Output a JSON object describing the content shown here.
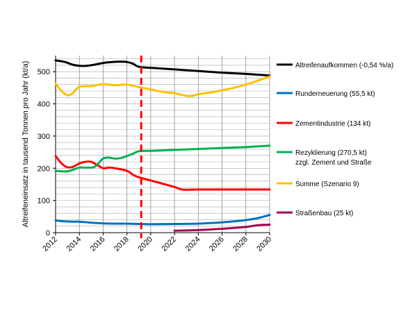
{
  "chart_data": {
    "type": "line",
    "title": "",
    "xlabel": "",
    "ylabel": "Altreifeneinsatz in tausend Tonnen pro Jahr (kt/a)",
    "xlim": [
      2012,
      2030
    ],
    "ylim": [
      0,
      550
    ],
    "x_ticks": [
      2012,
      2014,
      2016,
      2018,
      2020,
      2022,
      2024,
      2026,
      2028,
      2030
    ],
    "y_ticks": [
      0,
      100,
      200,
      300,
      400,
      500
    ],
    "grid": "horizontal minor (every 20) and vertical every 2 years",
    "legend_position": "right",
    "vertical_marker": {
      "x": 2019.2,
      "style": "dashed",
      "color": "#ff0000"
    },
    "series": [
      {
        "name": "Altreifenaufkommen (-0,54 %/a)",
        "color": "#000000",
        "points": [
          [
            2012,
            535
          ],
          [
            2012.8,
            530
          ],
          [
            2013.4,
            522
          ],
          [
            2014,
            518
          ],
          [
            2014.6,
            518
          ],
          [
            2015.3,
            522
          ],
          [
            2016,
            527
          ],
          [
            2016.8,
            530
          ],
          [
            2017.5,
            531
          ],
          [
            2018,
            530
          ],
          [
            2018.5,
            525
          ],
          [
            2019,
            515
          ],
          [
            2020,
            512
          ],
          [
            2022,
            507
          ],
          [
            2024,
            502
          ],
          [
            2026,
            497
          ],
          [
            2028,
            493
          ],
          [
            2030,
            488
          ]
        ]
      },
      {
        "name": "Runderneuerung (55,5 kt)",
        "color": "#0070c0",
        "points": [
          [
            2012,
            38
          ],
          [
            2012.8,
            35
          ],
          [
            2013.5,
            34
          ],
          [
            2014,
            34
          ],
          [
            2015,
            31
          ],
          [
            2016,
            29
          ],
          [
            2017,
            28
          ],
          [
            2018,
            28
          ],
          [
            2019,
            27
          ],
          [
            2020,
            26
          ],
          [
            2022,
            27
          ],
          [
            2024,
            28
          ],
          [
            2025,
            30
          ],
          [
            2026,
            32
          ],
          [
            2027,
            35
          ],
          [
            2028,
            39
          ],
          [
            2029,
            45
          ],
          [
            2030,
            55
          ]
        ]
      },
      {
        "name": "Zementindustrie (134 kt)",
        "color": "#ff0000",
        "points": [
          [
            2012,
            238
          ],
          [
            2012.5,
            215
          ],
          [
            2013,
            203
          ],
          [
            2013.5,
            205
          ],
          [
            2014,
            215
          ],
          [
            2014.5,
            220
          ],
          [
            2015,
            220
          ],
          [
            2015.5,
            210
          ],
          [
            2016,
            200
          ],
          [
            2016.5,
            202
          ],
          [
            2017,
            200
          ],
          [
            2018,
            192
          ],
          [
            2018.5,
            180
          ],
          [
            2019,
            172
          ],
          [
            2020,
            162
          ],
          [
            2021,
            152
          ],
          [
            2022,
            142
          ],
          [
            2022.5,
            135
          ],
          [
            2023,
            133
          ],
          [
            2024,
            134
          ],
          [
            2026,
            134
          ],
          [
            2028,
            134
          ],
          [
            2030,
            134
          ]
        ]
      },
      {
        "name": "Rezyklierung (270,5 kt)",
        "name_line2": "zzgl. Zement und Straße",
        "color": "#00b050",
        "points": [
          [
            2012,
            192
          ],
          [
            2012.7,
            190
          ],
          [
            2013.2,
            192
          ],
          [
            2014,
            202
          ],
          [
            2014.7,
            202
          ],
          [
            2015.3,
            205
          ],
          [
            2016,
            230
          ],
          [
            2016.5,
            233
          ],
          [
            2017,
            230
          ],
          [
            2017.5,
            232
          ],
          [
            2018,
            238
          ],
          [
            2018.5,
            245
          ],
          [
            2019,
            253
          ],
          [
            2020,
            254
          ],
          [
            2022,
            257
          ],
          [
            2024,
            260
          ],
          [
            2026,
            263
          ],
          [
            2028,
            266
          ],
          [
            2030,
            270
          ]
        ]
      },
      {
        "name": "Summe (Szenario 9)",
        "color": "#ffc000",
        "points": [
          [
            2012,
            463
          ],
          [
            2012.5,
            440
          ],
          [
            2013,
            427
          ],
          [
            2013.4,
            432
          ],
          [
            2014,
            453
          ],
          [
            2015,
            455
          ],
          [
            2016,
            461
          ],
          [
            2017,
            458
          ],
          [
            2018,
            460
          ],
          [
            2019,
            452
          ],
          [
            2020,
            445
          ],
          [
            2021,
            437
          ],
          [
            2022,
            433
          ],
          [
            2022.5,
            429
          ],
          [
            2023,
            425
          ],
          [
            2023.5,
            425
          ],
          [
            2024,
            430
          ],
          [
            2025,
            435
          ],
          [
            2026,
            442
          ],
          [
            2027,
            450
          ],
          [
            2028,
            460
          ],
          [
            2029,
            472
          ],
          [
            2030,
            485
          ]
        ]
      },
      {
        "name": "Straßenbau (25 kt)",
        "color": "#a50050",
        "points": [
          [
            2022,
            6
          ],
          [
            2024,
            8
          ],
          [
            2026,
            12
          ],
          [
            2028,
            18
          ],
          [
            2029,
            23
          ],
          [
            2030,
            25
          ]
        ]
      }
    ]
  }
}
